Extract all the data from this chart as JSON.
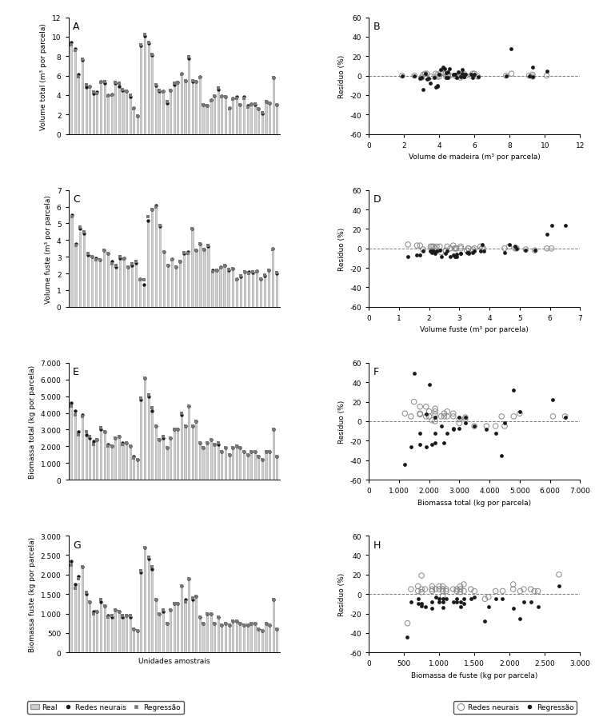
{
  "panel_A": {
    "label": "A",
    "ylabel": "Volume total (m³ por parcela)",
    "ylim": [
      0,
      12
    ],
    "yticks": [
      0,
      2,
      4,
      6,
      8,
      10,
      12
    ],
    "real": [
      9.3,
      8.7,
      6.0,
      7.7,
      5.0,
      4.9,
      4.2,
      4.3,
      5.3,
      5.3,
      4.0,
      4.1,
      5.2,
      5.2,
      4.5,
      4.4,
      3.9,
      2.6,
      1.9,
      9.1,
      10.1,
      9.3,
      8.1,
      5.0,
      4.5,
      4.4,
      3.2,
      4.5,
      5.1,
      5.3,
      6.2,
      5.5,
      7.8,
      5.4,
      5.4,
      5.9,
      3.0,
      2.9,
      3.5,
      3.9,
      4.6,
      3.9,
      3.8,
      2.7,
      3.7,
      3.8,
      3.0,
      3.8,
      2.9,
      3.1,
      3.1,
      2.6,
      2.2,
      3.3,
      3.2,
      5.8,
      3.0
    ],
    "neural": [
      9.4,
      8.8,
      6.1,
      7.6,
      4.8,
      4.9,
      4.2,
      4.3,
      5.4,
      5.2,
      4.0,
      4.1,
      5.2,
      4.9,
      4.5,
      4.4,
      3.8,
      2.7,
      1.9,
      9.1,
      10.1,
      9.3,
      8.1,
      5.0,
      4.4,
      4.4,
      3.2,
      4.5,
      5.1,
      5.3,
      6.2,
      5.5,
      7.8,
      5.4,
      5.4,
      5.9,
      3.0,
      2.9,
      3.5,
      3.9,
      4.6,
      3.9,
      3.8,
      2.7,
      3.7,
      3.8,
      3.0,
      3.8,
      2.9,
      3.1,
      3.0,
      2.6,
      2.1,
      3.3,
      3.2,
      5.8,
      3.0
    ],
    "regression": [
      9.2,
      8.6,
      5.9,
      7.7,
      5.1,
      4.8,
      4.3,
      4.2,
      5.3,
      5.4,
      3.9,
      4.0,
      5.3,
      5.2,
      4.6,
      4.4,
      4.0,
      2.6,
      1.9,
      9.2,
      10.2,
      9.4,
      8.2,
      5.1,
      4.5,
      4.3,
      3.3,
      4.5,
      5.2,
      5.3,
      6.1,
      5.5,
      7.9,
      5.5,
      5.4,
      5.8,
      3.0,
      2.9,
      3.4,
      3.9,
      4.7,
      3.8,
      3.8,
      2.6,
      3.6,
      3.7,
      3.0,
      3.7,
      2.8,
      3.0,
      3.1,
      2.6,
      2.2,
      3.3,
      3.2,
      5.8,
      3.0
    ]
  },
  "panel_B": {
    "label": "B",
    "xlabel": "Volume de madeira (m³ por parcela)",
    "ylabel": "Resíduo (%)",
    "xlim": [
      0,
      12
    ],
    "ylim": [
      -60,
      60
    ],
    "xticks": [
      0,
      2,
      4,
      6,
      8,
      10,
      12
    ],
    "yticks": [
      -60,
      -40,
      -20,
      0,
      20,
      40,
      60
    ],
    "x_neural": [
      1.9,
      2.6,
      3.0,
      3.1,
      3.2,
      3.2,
      3.3,
      3.5,
      3.8,
      3.9,
      3.9,
      4.0,
      4.1,
      4.2,
      4.3,
      4.4,
      4.5,
      4.5,
      4.5,
      4.6,
      4.9,
      5.0,
      5.1,
      5.2,
      5.3,
      5.3,
      5.4,
      5.5,
      5.8,
      5.9,
      6.0,
      6.2,
      7.8,
      8.1,
      9.1,
      9.3,
      9.3,
      10.1
    ],
    "y_neural": [
      0,
      0,
      -2,
      1,
      2,
      -1,
      2,
      -1,
      2,
      -1,
      1,
      -1,
      3,
      3,
      2,
      -1,
      0,
      1,
      -1,
      0,
      0,
      -1,
      1,
      -2,
      0,
      2,
      2,
      0,
      0,
      2,
      2,
      -1,
      0,
      2,
      0,
      -1,
      1,
      0
    ],
    "x_regression": [
      1.9,
      2.6,
      2.9,
      3.0,
      3.1,
      3.2,
      3.3,
      3.4,
      3.5,
      3.7,
      3.8,
      3.9,
      3.9,
      4.0,
      4.1,
      4.2,
      4.3,
      4.4,
      4.4,
      4.5,
      4.5,
      4.6,
      4.8,
      4.9,
      5.0,
      5.1,
      5.2,
      5.3,
      5.3,
      5.4,
      5.4,
      5.5,
      5.8,
      5.9,
      6.0,
      6.2,
      7.8,
      8.1,
      9.1,
      9.3,
      9.3,
      10.1
    ],
    "y_regression": [
      0,
      0,
      -3,
      -2,
      -14,
      2,
      -4,
      -3,
      -8,
      -2,
      -12,
      -10,
      -11,
      1,
      6,
      9,
      7,
      -2,
      3,
      4,
      -2,
      7,
      1,
      1,
      -2,
      4,
      -1,
      2,
      6,
      -1,
      -1,
      1,
      1,
      -2,
      1,
      -1,
      0,
      28,
      0,
      -1,
      9,
      5
    ]
  },
  "panel_C": {
    "label": "C",
    "ylabel": "Volume fuste (m³ por parcela)",
    "ylim": [
      0,
      7
    ],
    "yticks": [
      0,
      1,
      2,
      3,
      4,
      5,
      6,
      7
    ],
    "real": [
      5.5,
      3.75,
      4.5,
      4.5,
      3.05,
      3.05,
      2.8,
      2.85,
      3.5,
      3.25,
      2.65,
      2.4,
      2.9,
      2.9,
      2.35,
      2.55,
      2.6,
      1.6,
      1.3,
      5.2,
      5.9,
      6.05,
      4.9,
      3.3,
      2.5,
      2.85,
      2.35,
      2.7,
      3.25,
      3.3,
      4.65,
      3.45,
      3.8,
      3.45,
      3.7,
      2.2,
      2.15,
      2.4,
      2.55,
      2.2,
      2.25,
      1.7,
      1.8,
      2.1,
      2.05,
      2.1,
      2.1,
      1.6,
      1.9,
      2.2,
      3.5,
      2.05
    ],
    "neural": [
      5.5,
      3.8,
      4.7,
      4.4,
      3.1,
      3.0,
      2.9,
      2.8,
      3.4,
      3.2,
      2.7,
      2.4,
      2.9,
      2.9,
      2.4,
      2.5,
      2.65,
      1.65,
      1.35,
      5.15,
      5.85,
      6.1,
      4.85,
      3.3,
      2.5,
      2.85,
      2.4,
      2.7,
      3.2,
      3.3,
      4.7,
      3.4,
      3.8,
      3.45,
      3.65,
      2.2,
      2.2,
      2.4,
      2.5,
      2.2,
      2.3,
      1.65,
      1.8,
      2.1,
      2.1,
      2.05,
      2.15,
      1.65,
      1.85,
      2.2,
      3.5,
      2.0
    ],
    "regression": [
      5.4,
      3.7,
      4.8,
      4.5,
      3.2,
      3.0,
      2.8,
      2.8,
      3.4,
      3.2,
      2.6,
      2.5,
      3.0,
      2.85,
      2.4,
      2.6,
      2.7,
      1.6,
      1.6,
      5.4,
      5.85,
      6.0,
      4.9,
      3.3,
      2.5,
      2.8,
      2.4,
      2.7,
      3.25,
      3.2,
      4.7,
      3.4,
      3.8,
      3.45,
      3.7,
      2.1,
      2.2,
      2.35,
      2.5,
      2.25,
      2.3,
      1.6,
      1.85,
      2.1,
      2.0,
      2.1,
      2.1,
      1.65,
      1.9,
      2.2,
      3.45,
      2.05
    ]
  },
  "panel_D": {
    "label": "D",
    "xlabel": "Volume fuste (m³ por parcela)",
    "ylabel": "Resíduo (%)",
    "xlim": [
      0,
      7
    ],
    "ylim": [
      -60,
      60
    ],
    "xticks": [
      0,
      1,
      2,
      3,
      4,
      5,
      6,
      7
    ],
    "yticks": [
      -60,
      -40,
      -20,
      0,
      20,
      40,
      60
    ],
    "x_neural": [
      1.3,
      1.6,
      1.7,
      1.8,
      2.05,
      2.1,
      2.1,
      2.15,
      2.2,
      2.25,
      2.35,
      2.4,
      2.55,
      2.6,
      2.7,
      2.8,
      2.85,
      2.9,
      2.9,
      3.05,
      3.05,
      3.25,
      3.3,
      3.3,
      3.45,
      3.5,
      3.7,
      3.75,
      3.8,
      4.5,
      4.65,
      4.85,
      4.9,
      5.2,
      5.5,
      5.9,
      6.05
    ],
    "y_neural": [
      4,
      3,
      3,
      -1,
      2,
      2,
      -2,
      2,
      0,
      2,
      2,
      -4,
      -2,
      2,
      0,
      3,
      0,
      0,
      0,
      2,
      0,
      -2,
      0,
      0,
      -1,
      0,
      2,
      0,
      0,
      0,
      2,
      0,
      0,
      -1,
      -2,
      0,
      0
    ],
    "x_regression": [
      1.3,
      1.6,
      1.7,
      1.8,
      2.05,
      2.1,
      2.1,
      2.15,
      2.2,
      2.25,
      2.35,
      2.4,
      2.55,
      2.6,
      2.7,
      2.8,
      2.85,
      2.9,
      2.9,
      3.05,
      3.05,
      3.25,
      3.3,
      3.3,
      3.45,
      3.5,
      3.7,
      3.75,
      3.8,
      4.5,
      4.65,
      4.85,
      4.9,
      5.2,
      5.5,
      5.9,
      6.05,
      6.5
    ],
    "y_regression": [
      -8,
      -7,
      -7,
      -3,
      -3,
      -3,
      -4,
      -3,
      -5,
      -3,
      -2,
      -8,
      -5,
      -3,
      -8,
      -7,
      -8,
      -8,
      -6,
      -5,
      -5,
      -4,
      -4,
      -5,
      -4,
      -3,
      -3,
      4,
      -3,
      -4,
      4,
      2,
      0,
      -2,
      -2,
      15,
      24,
      24
    ]
  },
  "panel_E": {
    "label": "E",
    "ylabel": "Biomassa total (kg por parcela)",
    "ylim": [
      0,
      7000
    ],
    "yticks": [
      0,
      1000,
      2000,
      3000,
      4000,
      5000,
      6000,
      7000
    ],
    "yticklabels": [
      "0",
      "1.000",
      "2.000",
      "3.000",
      "4.000",
      "5.000",
      "6.000",
      "7.000"
    ],
    "real": [
      4500,
      4000,
      2800,
      3800,
      2800,
      2600,
      2200,
      2400,
      3000,
      2800,
      2000,
      2000,
      2500,
      2500,
      2200,
      2200,
      2000,
      1400,
      1200,
      4800,
      6100,
      5000,
      4200,
      3200,
      2400,
      2600,
      1900,
      2500,
      3000,
      3000,
      3900,
      3200,
      4400,
      3200,
      3500,
      2200,
      1900,
      2200,
      2400,
      2100,
      2200,
      1700,
      1900,
      1500,
      1900,
      2000,
      1900,
      1700,
      1500,
      1700,
      1700,
      1400,
      1200,
      1700,
      1700,
      3000,
      1400
    ],
    "neural": [
      4600,
      4100,
      2900,
      3900,
      2700,
      2500,
      2300,
      2400,
      3000,
      2900,
      2100,
      2000,
      2500,
      2600,
      2200,
      2200,
      2000,
      1400,
      1200,
      4800,
      6100,
      5000,
      4100,
      3200,
      2400,
      2500,
      1900,
      2500,
      3000,
      3000,
      3900,
      3200,
      4400,
      3200,
      3500,
      2200,
      1900,
      2200,
      2400,
      2100,
      2100,
      1700,
      1900,
      1500,
      1900,
      2000,
      1900,
      1700,
      1500,
      1700,
      1700,
      1400,
      1200,
      1700,
      1700,
      3000,
      1400
    ],
    "regression": [
      4400,
      3900,
      2700,
      3800,
      2900,
      2600,
      2100,
      2400,
      3100,
      2900,
      2000,
      2000,
      2500,
      2600,
      2100,
      2200,
      2000,
      1300,
      1200,
      4900,
      6100,
      5100,
      4300,
      3200,
      2400,
      2600,
      1900,
      2500,
      3000,
      3000,
      4000,
      3200,
      4400,
      3200,
      3500,
      2200,
      1900,
      2200,
      2400,
      2100,
      2200,
      1700,
      1900,
      1500,
      1900,
      2000,
      1900,
      1700,
      1500,
      1700,
      1700,
      1400,
      1200,
      1700,
      1700,
      3000,
      1400
    ]
  },
  "panel_F": {
    "label": "F",
    "xlabel": "Biomassa total (kg por parcela)",
    "ylabel": "Resíduo (%)",
    "xlim": [
      0,
      7000
    ],
    "ylim": [
      -60,
      60
    ],
    "xticks": [
      0,
      1000,
      2000,
      3000,
      4000,
      5000,
      6000,
      7000
    ],
    "xticklabels": [
      "0",
      "1.000",
      "2.000",
      "3.000",
      "4.000",
      "5.000",
      "6.000",
      "7.000"
    ],
    "yticks": [
      -60,
      -40,
      -20,
      0,
      20,
      40,
      60
    ],
    "x_neural": [
      1200,
      1400,
      1500,
      1700,
      1700,
      1700,
      1900,
      1900,
      2000,
      2000,
      2100,
      2200,
      2200,
      2200,
      2200,
      2400,
      2500,
      2500,
      2600,
      2600,
      2800,
      2800,
      3000,
      3000,
      3200,
      3200,
      3500,
      3900,
      4200,
      4400,
      4500,
      4800,
      5000,
      6100,
      6500
    ],
    "y_neural": [
      8,
      5,
      20,
      7,
      15,
      8,
      5,
      15,
      10,
      5,
      1,
      7,
      10,
      13,
      0,
      5,
      5,
      8,
      5,
      10,
      5,
      8,
      2,
      -2,
      2,
      4,
      -5,
      -5,
      -5,
      5,
      -5,
      5,
      8,
      5,
      5
    ],
    "x_regression": [
      1200,
      1400,
      1500,
      1700,
      1700,
      1900,
      1900,
      2000,
      2100,
      2200,
      2200,
      2200,
      2400,
      2500,
      2600,
      2800,
      2800,
      3000,
      3000,
      3200,
      3200,
      3500,
      3900,
      4200,
      4400,
      4500,
      4800,
      5000,
      6100,
      6500
    ],
    "y_regression": [
      -44,
      -26,
      49,
      -24,
      -12,
      -26,
      7,
      38,
      -24,
      -12,
      -22,
      4,
      -5,
      -22,
      -12,
      -8,
      -7,
      -7,
      4,
      4,
      -2,
      -5,
      -8,
      -12,
      -35,
      -2,
      32,
      10,
      22,
      4
    ]
  },
  "panel_G": {
    "label": "G",
    "ylabel": "Biomassa fuste (kg por parcela)",
    "xlabel": "Unidades amostrais",
    "ylim": [
      0,
      3000
    ],
    "yticks": [
      0,
      500,
      1000,
      1500,
      2000,
      2500,
      3000
    ],
    "yticklabels": [
      "0",
      "500",
      "1.000",
      "1.500",
      "2.000",
      "2.500",
      "3.000"
    ],
    "real": [
      2300,
      1700,
      1800,
      2200,
      1500,
      1300,
      1050,
      1050,
      1300,
      1200,
      900,
      900,
      1100,
      1050,
      900,
      950,
      900,
      600,
      550,
      2050,
      2700,
      2400,
      2150,
      1350,
      1000,
      1050,
      750,
      1100,
      1250,
      1250,
      1650,
      1300,
      1900,
      1350,
      1450,
      900,
      750,
      1000,
      1000,
      750,
      900,
      700,
      750,
      700,
      800,
      800,
      750,
      700,
      700,
      750,
      750,
      600,
      550,
      750,
      700,
      1350,
      600
    ],
    "neural": [
      2350,
      1750,
      1950,
      2200,
      1500,
      1300,
      1050,
      1050,
      1300,
      1200,
      950,
      900,
      1100,
      1050,
      900,
      950,
      900,
      600,
      550,
      2050,
      2700,
      2400,
      2150,
      1350,
      1000,
      1050,
      750,
      1100,
      1250,
      1250,
      1700,
      1350,
      1900,
      1350,
      1450,
      900,
      750,
      1000,
      1000,
      750,
      900,
      700,
      750,
      700,
      800,
      800,
      750,
      700,
      700,
      750,
      750,
      600,
      550,
      750,
      700,
      1350,
      600
    ],
    "regression": [
      2250,
      1650,
      1900,
      2200,
      1550,
      1300,
      1000,
      1050,
      1350,
      1200,
      900,
      950,
      1100,
      1050,
      950,
      950,
      950,
      600,
      550,
      2100,
      2700,
      2450,
      2200,
      1350,
      1000,
      1100,
      750,
      1100,
      1250,
      1250,
      1700,
      1300,
      1900,
      1400,
      1450,
      900,
      750,
      1000,
      1000,
      750,
      900,
      700,
      750,
      700,
      800,
      800,
      750,
      700,
      700,
      750,
      750,
      600,
      550,
      750,
      700,
      1350,
      600
    ]
  },
  "panel_H": {
    "label": "H",
    "xlabel": "Biomassa de fuste (kg por parcela)",
    "ylabel": "Resíduo (%)",
    "xlim": [
      0,
      3000
    ],
    "ylim": [
      -60,
      60
    ],
    "xticks": [
      0,
      500,
      1000,
      1500,
      2000,
      2500,
      3000
    ],
    "xticklabels": [
      "0",
      "500",
      "1.000",
      "1.500",
      "2.000",
      "2.500",
      "3.000"
    ],
    "yticks": [
      -60,
      -40,
      -20,
      0,
      20,
      40,
      60
    ],
    "x_neural": [
      550,
      600,
      700,
      700,
      750,
      750,
      750,
      800,
      900,
      900,
      900,
      950,
      1000,
      1000,
      1050,
      1050,
      1050,
      1050,
      1100,
      1100,
      1200,
      1250,
      1250,
      1300,
      1300,
      1300,
      1350,
      1350,
      1450,
      1500,
      1650,
      1700,
      1800,
      1900,
      2050,
      2050,
      2150,
      2200,
      2300,
      2350,
      2400,
      2700
    ],
    "y_neural": [
      -30,
      5,
      3,
      8,
      5,
      19,
      2,
      5,
      5,
      8,
      3,
      5,
      5,
      8,
      5,
      3,
      -2,
      8,
      3,
      5,
      5,
      3,
      5,
      5,
      8,
      2,
      3,
      10,
      5,
      3,
      -5,
      -3,
      3,
      3,
      5,
      10,
      3,
      5,
      5,
      3,
      3,
      20
    ],
    "x_regression": [
      550,
      600,
      700,
      700,
      750,
      750,
      800,
      900,
      900,
      950,
      1000,
      1000,
      1050,
      1050,
      1050,
      1100,
      1200,
      1250,
      1250,
      1300,
      1300,
      1350,
      1350,
      1450,
      1500,
      1650,
      1700,
      1800,
      1900,
      2050,
      2150,
      2200,
      2300,
      2400,
      2700
    ],
    "y_regression": [
      -44,
      -8,
      -5,
      -10,
      -10,
      -12,
      -13,
      -8,
      -15,
      -3,
      -8,
      -5,
      -5,
      -8,
      -14,
      -5,
      -8,
      -5,
      -8,
      -8,
      -13,
      -5,
      -10,
      -5,
      -3,
      -28,
      -13,
      -5,
      -5,
      -15,
      -25,
      -8,
      -8,
      -13,
      8
    ]
  },
  "bar_width": 0.35,
  "colors": {
    "bar_color": "#d0d0d0",
    "bar_edge": "#999999",
    "neural_color": "#1a1a1a",
    "regression_color": "#555555"
  }
}
